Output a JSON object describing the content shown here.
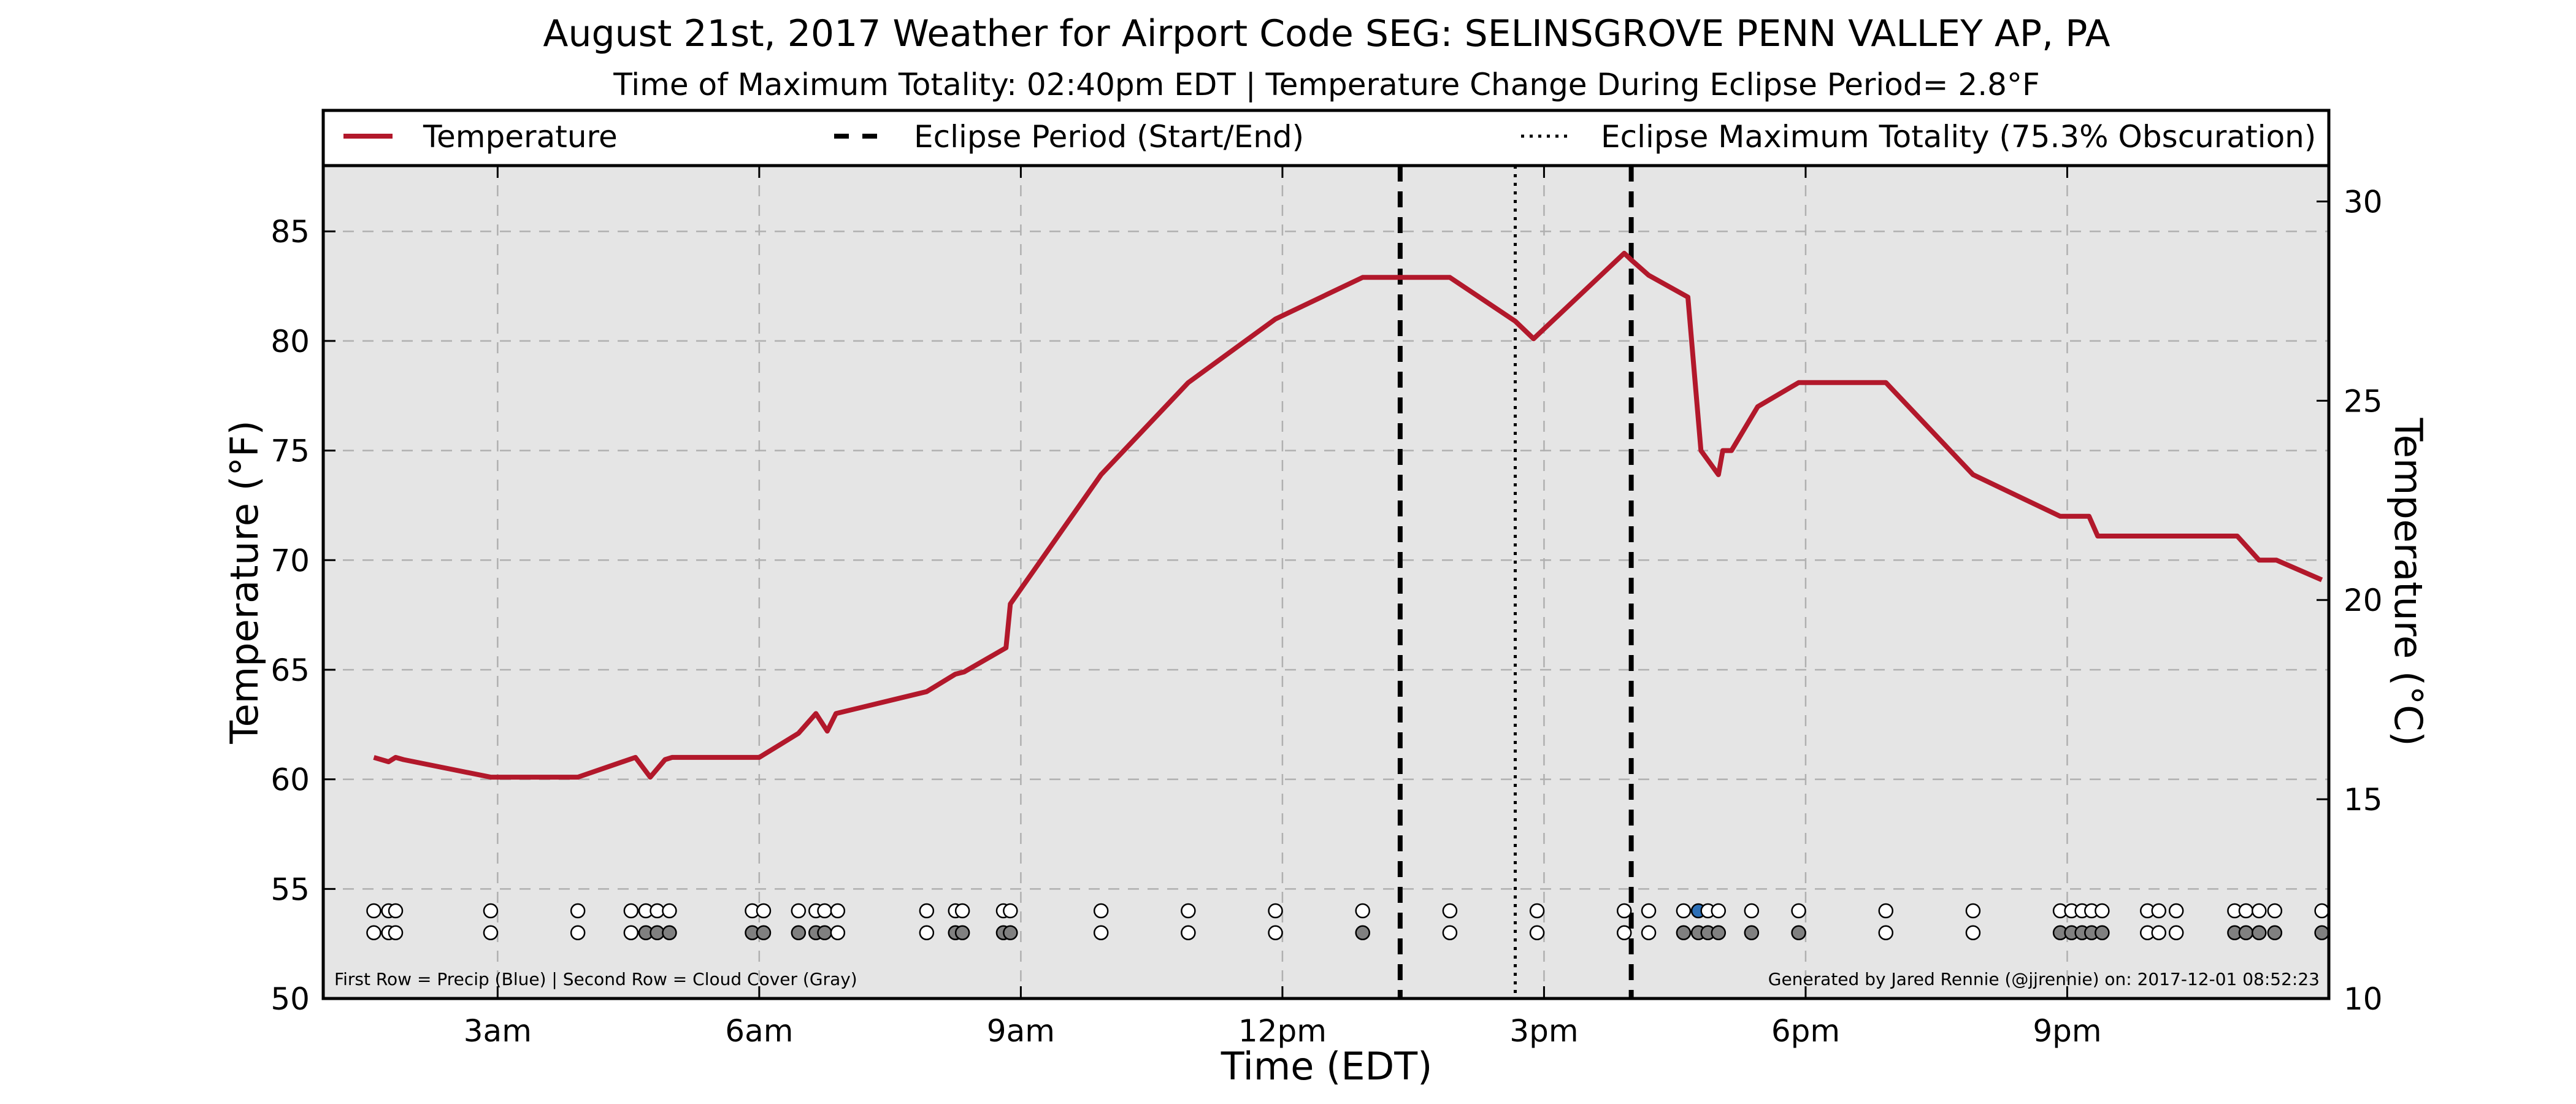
{
  "chart_data": {
    "type": "line",
    "title": "August 21st, 2017 Weather for Airport Code SEG: SELINSGROVE PENN VALLEY AP, PA",
    "subtitle": "Time of Maximum Totality: 02:40pm EDT | Temperature Change During Eclipse Period= 2.8°F",
    "xlabel": "Time (EDT)",
    "ylabel": "Temperature (°F)",
    "y2label": "Temperature (°C)",
    "xlim": [
      1.0,
      24.0
    ],
    "ylim": [
      50,
      88
    ],
    "y2lim": [
      10,
      30.9
    ],
    "grid": true,
    "legend_placement": "top",
    "x_ticks": [
      {
        "x": 3,
        "label": "3am"
      },
      {
        "x": 6,
        "label": "6am"
      },
      {
        "x": 9,
        "label": "9am"
      },
      {
        "x": 12,
        "label": "12pm"
      },
      {
        "x": 15,
        "label": "3pm"
      },
      {
        "x": 18,
        "label": "6pm"
      },
      {
        "x": 21,
        "label": "9pm"
      }
    ],
    "y_ticks": [
      {
        "y": 50,
        "label": "50"
      },
      {
        "y": 55,
        "label": "55"
      },
      {
        "y": 60,
        "label": "60"
      },
      {
        "y": 65,
        "label": "65"
      },
      {
        "y": 70,
        "label": "70"
      },
      {
        "y": 75,
        "label": "75"
      },
      {
        "y": 80,
        "label": "80"
      },
      {
        "y": 85,
        "label": "85"
      }
    ],
    "y2_ticks": [
      {
        "y": 10,
        "label": "10"
      },
      {
        "y": 15,
        "label": "15"
      },
      {
        "y": 20,
        "label": "20"
      },
      {
        "y": 25,
        "label": "25"
      },
      {
        "y": 30,
        "label": "30"
      }
    ],
    "legend": [
      {
        "label": "Temperature",
        "style": "solid"
      },
      {
        "label": "Eclipse Period (Start/End)",
        "style": "dashed"
      },
      {
        "label": "Eclipse Maximum Totality (75.3% Obscuration)",
        "style": "dotted"
      }
    ],
    "series": [
      {
        "name": "Temperature",
        "color": "#b2182b",
        "x": [
          1.58,
          1.75,
          1.83,
          1.92,
          2.92,
          3.92,
          4.58,
          4.75,
          4.92,
          5.0,
          5.92,
          6.0,
          6.45,
          6.65,
          6.78,
          6.88,
          7.92,
          8.25,
          8.35,
          8.83,
          8.88,
          9.92,
          10.92,
          11.92,
          12.92,
          13.35,
          13.92,
          14.67,
          14.88,
          15.92,
          16.0,
          16.2,
          16.65,
          16.8,
          17.0,
          17.05,
          17.15,
          17.45,
          17.92,
          18.92,
          19.92,
          20.92,
          21.25,
          21.35,
          21.92,
          22.92,
          22.95,
          23.2,
          23.4,
          23.92
        ],
        "y": [
          61.0,
          60.8,
          61.0,
          60.9,
          60.1,
          60.1,
          61.0,
          60.1,
          60.9,
          61.0,
          61.0,
          61.0,
          62.1,
          63.0,
          62.2,
          63.0,
          64.0,
          64.8,
          64.9,
          66.0,
          68.0,
          73.9,
          78.1,
          81.0,
          82.9,
          82.9,
          82.9,
          80.9,
          80.1,
          84.0,
          83.7,
          83.0,
          82.0,
          75.0,
          73.9,
          75.0,
          75.0,
          77.0,
          78.1,
          78.1,
          73.9,
          72.0,
          72.0,
          71.1,
          71.1,
          71.1,
          71.1,
          70.0,
          70.0,
          69.1
        ]
      }
    ],
    "eclipse_start": 13.35,
    "eclipse_end": 16.0,
    "eclipse_max_totality": 14.67,
    "precip_row_first": {
      "description": "First Row = Precip (Blue)",
      "x": [
        1.58,
        1.75,
        1.83,
        2.92,
        3.92,
        4.53,
        4.7,
        4.83,
        4.97,
        5.92,
        6.05,
        6.45,
        6.65,
        6.75,
        6.9,
        7.92,
        8.25,
        8.33,
        8.8,
        8.88,
        9.92,
        10.92,
        11.92,
        12.92,
        13.92,
        14.92,
        15.92,
        16.2,
        16.6,
        16.77,
        16.88,
        17.0,
        17.38,
        17.92,
        18.92,
        19.92,
        20.92,
        21.05,
        21.17,
        21.28,
        21.4,
        21.92,
        22.05,
        22.25,
        22.92,
        23.05,
        23.2,
        23.38,
        23.92
      ],
      "precip": [
        0,
        0,
        0,
        0,
        0,
        0,
        0,
        0,
        0,
        0,
        0,
        0,
        0,
        0,
        0,
        0,
        0,
        0,
        0,
        0,
        0,
        0,
        0,
        0,
        0,
        0,
        0,
        0,
        0,
        1,
        0,
        0,
        0,
        0,
        0,
        0,
        0,
        0,
        0,
        0,
        0,
        0,
        0,
        0,
        0,
        0,
        0,
        0,
        0
      ]
    },
    "cloud_row_second": {
      "description": "Second Row = Cloud Cover (Gray)",
      "x": [
        1.58,
        1.75,
        1.83,
        2.92,
        3.92,
        4.53,
        4.7,
        4.83,
        4.97,
        5.92,
        6.05,
        6.45,
        6.65,
        6.75,
        6.9,
        7.92,
        8.25,
        8.33,
        8.8,
        8.88,
        9.92,
        10.92,
        11.92,
        12.92,
        13.92,
        14.92,
        15.92,
        16.2,
        16.6,
        16.77,
        16.88,
        17.0,
        17.38,
        17.92,
        18.92,
        19.92,
        20.92,
        21.05,
        21.17,
        21.28,
        21.4,
        21.92,
        22.05,
        22.25,
        22.92,
        23.05,
        23.2,
        23.38,
        23.92
      ],
      "cloud": [
        0,
        0,
        0,
        0,
        0,
        0,
        1,
        1,
        1,
        1,
        1,
        1,
        1,
        1,
        0,
        0,
        1,
        1,
        1,
        1,
        0,
        0,
        0,
        1,
        0,
        0,
        0,
        0,
        1,
        1,
        1,
        1,
        1,
        1,
        0,
        0,
        1,
        1,
        1,
        1,
        1,
        0,
        0,
        0,
        1,
        1,
        1,
        1,
        1
      ]
    },
    "footnote_left": "First Row = Precip (Blue) | Second Row = Cloud Cover (Gray)",
    "footnote_right": "Generated by Jared Rennie (@jjrennie) on: 2017-12-01 08:52:23",
    "colors": {
      "plot_background": "#e5e5e5",
      "temperature_line": "#b2182b",
      "precip_marker": "#2c6fb7",
      "cloud_marker": "#808080",
      "empty_marker": "#ffffff",
      "grid": "#b0b0b0"
    }
  }
}
